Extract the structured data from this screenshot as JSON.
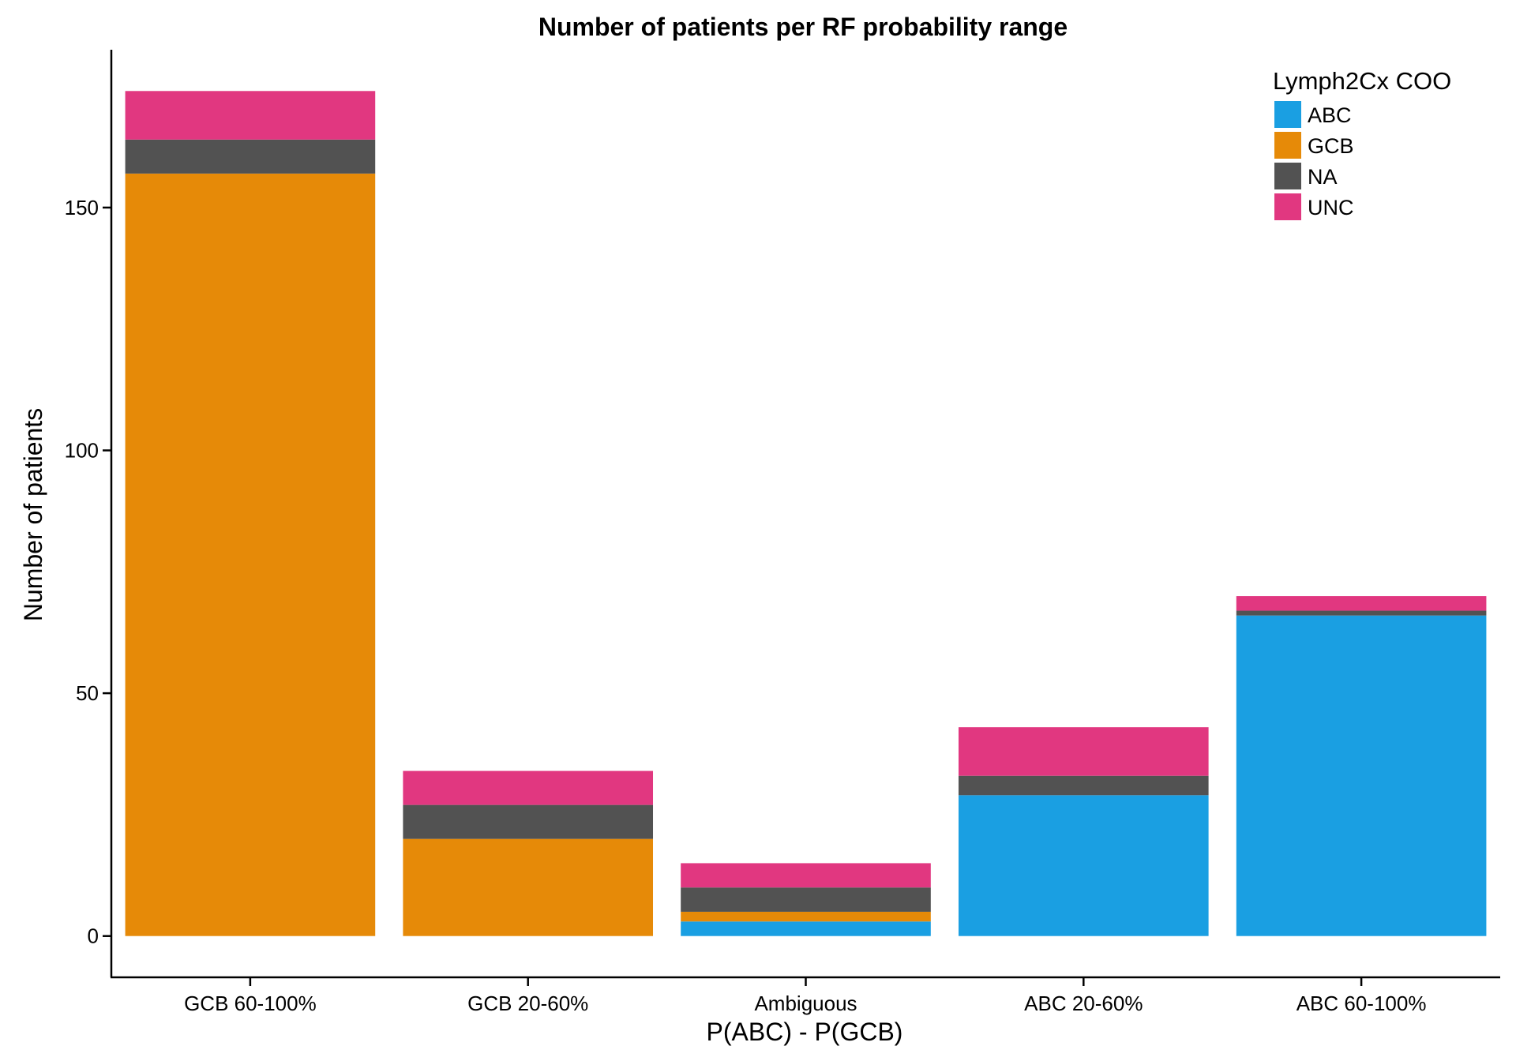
{
  "chart_data": {
    "type": "bar",
    "stacked": true,
    "title": "Number of patients per RF probability range",
    "xlabel": "P(ABC) - P(GCB)",
    "ylabel": "Number of patients",
    "categories": [
      "GCB 60-100%",
      "GCB 20-60%",
      "Ambiguous",
      "ABC 20-60%",
      "ABC 60-100%"
    ],
    "series": [
      {
        "name": "ABC",
        "color": "#1A9FE2",
        "values": [
          0,
          0,
          3,
          29,
          66
        ]
      },
      {
        "name": "GCB",
        "color": "#E68A08",
        "values": [
          157,
          20,
          2,
          0,
          0
        ]
      },
      {
        "name": "NA",
        "color": "#525252",
        "values": [
          7,
          7,
          5,
          4,
          1
        ]
      },
      {
        "name": "UNC",
        "color": "#E13780",
        "values": [
          10,
          7,
          5,
          10,
          3
        ]
      }
    ],
    "stack_order": [
      "ABC",
      "GCB",
      "NA",
      "UNC"
    ],
    "yticks": [
      0,
      50,
      100,
      150
    ],
    "ylim": [
      -8.5,
      182.5
    ],
    "grid": false,
    "legend": {
      "title": "Lymph2Cx COO",
      "position": "top-right"
    }
  }
}
